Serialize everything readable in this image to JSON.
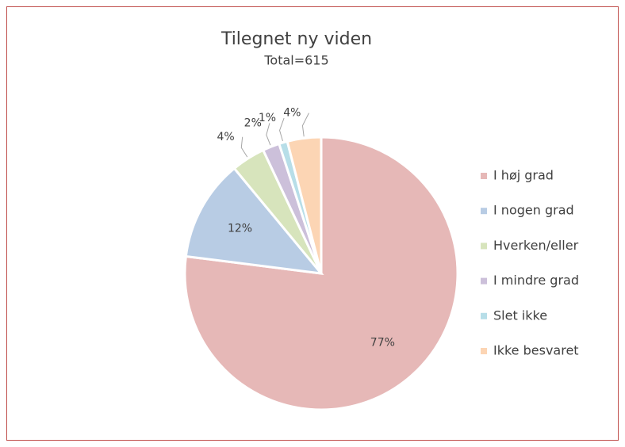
{
  "chart_data": {
    "type": "pie",
    "title": "Tilegnet ny viden",
    "subtitle": "Total=615",
    "categories": [
      "I høj grad",
      "I nogen grad",
      "Hverken/eller",
      "I mindre grad",
      "Slet ikke",
      "Ikke besvaret"
    ],
    "values": [
      77,
      12,
      4,
      2,
      1,
      4
    ],
    "value_labels": [
      "77%",
      "12%",
      "4%",
      "2%",
      "1%",
      "4%"
    ],
    "colors": [
      "#e6b8b7",
      "#b8cce4",
      "#d7e4bc",
      "#ccc0da",
      "#b7dee8",
      "#fcd5b4"
    ],
    "legend": "right"
  }
}
